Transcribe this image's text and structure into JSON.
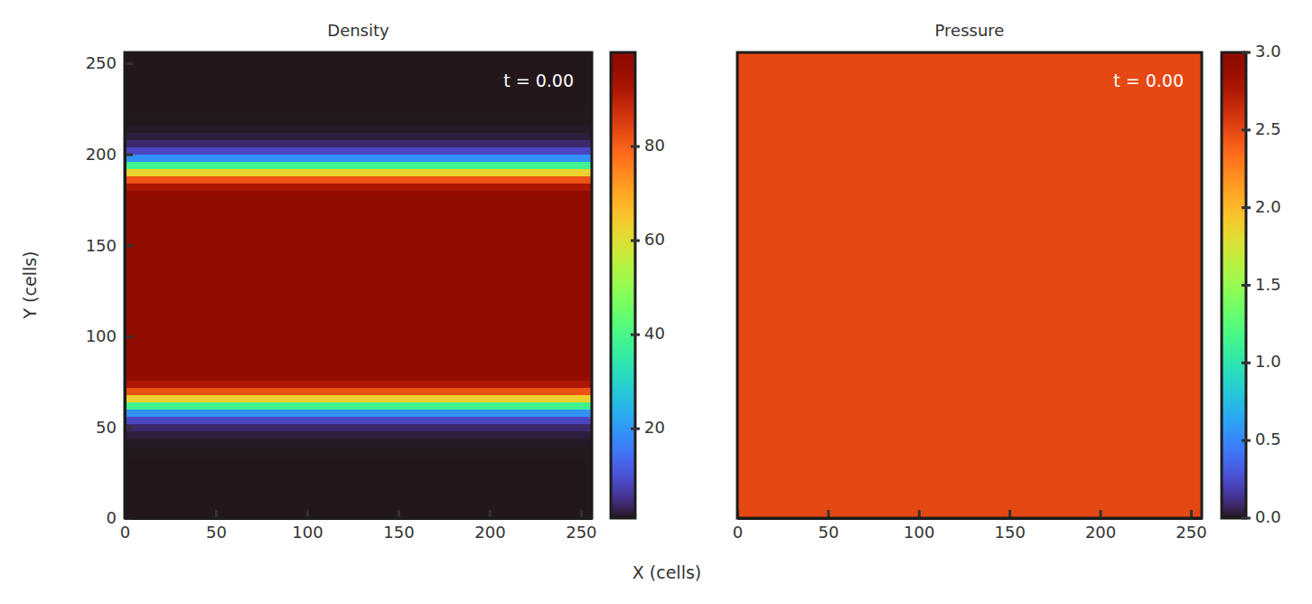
{
  "chart_data": {
    "type": "heatmap",
    "xlabel": "X (cells)",
    "ylabel": "Y (cells)",
    "panels": [
      {
        "title": "Density",
        "annotation": "t = 0.00",
        "xlim": [
          0,
          256
        ],
        "ylim": [
          0,
          256
        ],
        "xticks": [
          0,
          50,
          100,
          150,
          200,
          250
        ],
        "yticks": [
          0,
          50,
          100,
          150,
          200,
          250
        ],
        "x_bins": [
          0,
          256
        ],
        "y_bins": [
          0,
          4,
          8,
          12,
          16,
          20,
          24,
          28,
          32,
          36,
          40,
          44,
          48,
          52,
          56,
          60,
          64,
          68,
          72,
          76,
          80,
          84,
          88,
          92,
          96,
          100,
          104,
          108,
          112,
          116,
          120,
          124,
          128,
          132,
          136,
          140,
          144,
          148,
          152,
          156,
          160,
          164,
          168,
          172,
          176,
          180,
          184,
          188,
          192,
          196,
          200,
          204,
          208,
          212,
          216,
          220,
          224,
          228,
          232,
          236,
          240,
          244,
          248,
          252,
          256
        ],
        "cells": [
          [
            1.0
          ],
          [
            1.0
          ],
          [
            1.0
          ],
          [
            1.0
          ],
          [
            1.0
          ],
          [
            1.0
          ],
          [
            1.0
          ],
          [
            1.02
          ],
          [
            1.05
          ],
          [
            1.15
          ],
          [
            1.4
          ],
          [
            2.09
          ],
          [
            3.9
          ],
          [
            8.51
          ],
          [
            19.06
          ],
          [
            38.38
          ],
          [
            62.62
          ],
          [
            81.94
          ],
          [
            92.49
          ],
          [
            97.1
          ],
          [
            98.91
          ],
          [
            99.6
          ],
          [
            99.85
          ],
          [
            99.95
          ],
          [
            100
          ],
          [
            100
          ],
          [
            100
          ],
          [
            100
          ],
          [
            100
          ],
          [
            100
          ],
          [
            100
          ],
          [
            100
          ],
          [
            100
          ],
          [
            100
          ],
          [
            100
          ],
          [
            100
          ],
          [
            100
          ],
          [
            100
          ],
          [
            100
          ],
          [
            100
          ],
          [
            99.95
          ],
          [
            99.85
          ],
          [
            99.6
          ],
          [
            98.91
          ],
          [
            97.1
          ],
          [
            92.49
          ],
          [
            81.94
          ],
          [
            62.62
          ],
          [
            38.38
          ],
          [
            19.06
          ],
          [
            8.51
          ],
          [
            3.9
          ],
          [
            2.09
          ],
          [
            1.4
          ],
          [
            1.15
          ],
          [
            1.05
          ],
          [
            1.02
          ],
          [
            1.0
          ],
          [
            1.0
          ],
          [
            1.0
          ],
          [
            1.0
          ],
          [
            1.0
          ],
          [
            1.0
          ],
          [
            1.0
          ]
        ],
        "colorbar": {
          "range": [
            1,
            100
          ],
          "ticks": [
            20,
            40,
            60,
            80
          ]
        }
      },
      {
        "title": "Pressure",
        "annotation": "t = 0.00",
        "xlim": [
          0,
          256
        ],
        "ylim": [
          0,
          256
        ],
        "xticks": [
          0,
          50,
          100,
          150,
          200,
          250
        ],
        "tick_labels": "x",
        "x_bins": [
          0,
          256
        ],
        "y_bins": [
          0,
          256
        ],
        "cells": [
          [
            2.5
          ]
        ],
        "colorbar": {
          "range": [
            0,
            3
          ],
          "ticks": [
            {
              "value": 0,
              "label": "0.0"
            },
            0.5,
            {
              "value": 1,
              "label": "1.0"
            },
            1.5,
            {
              "value": 2,
              "label": "2.0"
            },
            2.5,
            {
              "value": 3,
              "label": "3.0"
            }
          ]
        }
      }
    ]
  }
}
